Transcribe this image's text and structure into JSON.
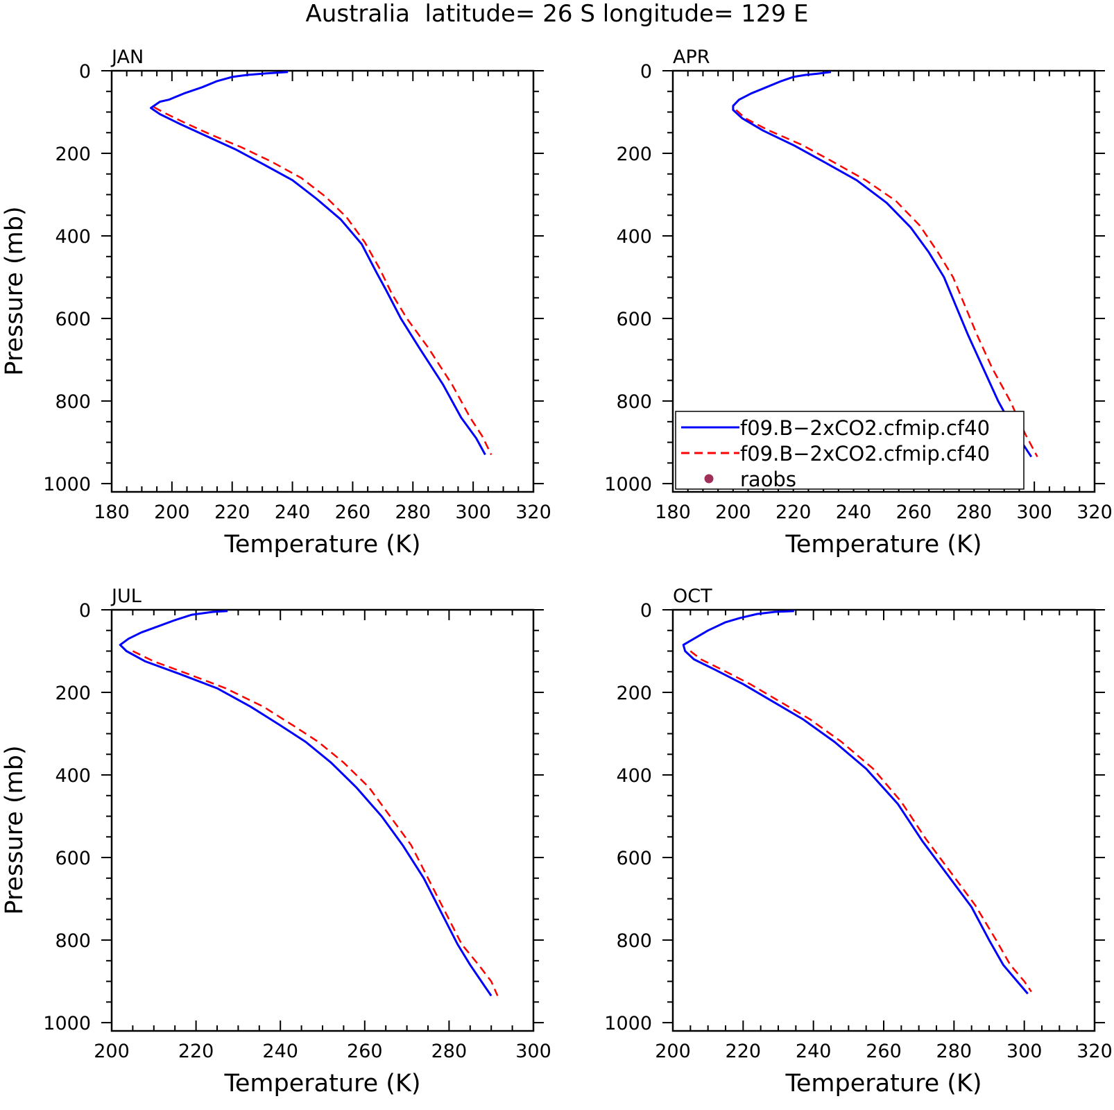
{
  "figure": {
    "title": "Australia  latitude= 26 S longitude= 129 E"
  },
  "colors": {
    "series_1": "#0000ff",
    "series_2": "#ff0000",
    "raobs": "#a0305a"
  },
  "legend": {
    "panel": 1,
    "entries": [
      {
        "label": "f09.B−2xCO2.cfmip.cf40",
        "style": "solid",
        "color": "#0000ff"
      },
      {
        "label": "f09.B−2xCO2.cfmip.cf40",
        "style": "dashed",
        "color": "#ff0000"
      },
      {
        "label": "raobs",
        "style": "dot",
        "color": "#a0305a"
      }
    ]
  },
  "chart_data": [
    {
      "type": "line",
      "title": "JAN",
      "xlabel": "Temperature (K)",
      "ylabel": "Pressure (mb)",
      "xlim": [
        180,
        320
      ],
      "ylim": [
        1020,
        0
      ],
      "xticks": [
        180,
        200,
        220,
        240,
        260,
        280,
        300,
        320
      ],
      "yticks": [
        0,
        200,
        400,
        600,
        800,
        1000
      ],
      "series": [
        {
          "values": [
            [
              238.5,
              3
            ],
            [
              230,
              7
            ],
            [
              225,
              10
            ],
            [
              220,
              15
            ],
            [
              215,
              25
            ],
            [
              210,
              40
            ],
            [
              204,
              55
            ],
            [
              199,
              70
            ],
            [
              196,
              75
            ],
            [
              193,
              90
            ],
            [
              196,
              105
            ],
            [
              203,
              130
            ],
            [
              212,
              160
            ],
            [
              221,
              190
            ],
            [
              230,
              225
            ],
            [
              240,
              265
            ],
            [
              248,
              310
            ],
            [
              256,
              360
            ],
            [
              263,
              420
            ],
            [
              268,
              490
            ],
            [
              271,
              530
            ],
            [
              276,
              600
            ],
            [
              282,
              670
            ],
            [
              290,
              760
            ],
            [
              296,
              840
            ],
            [
              301,
              890
            ],
            [
              304,
              930
            ]
          ]
        },
        {
          "values": [
            [
              194,
              88
            ],
            [
              197,
              100
            ],
            [
              204,
              125
            ],
            [
              213,
              155
            ],
            [
              223,
              185
            ],
            [
              233,
              220
            ],
            [
              243,
              260
            ],
            [
              251,
              305
            ],
            [
              258,
              355
            ],
            [
              264,
              415
            ],
            [
              269,
              480
            ],
            [
              273,
              540
            ],
            [
              278,
              600
            ],
            [
              285,
              670
            ],
            [
              293,
              760
            ],
            [
              299,
              840
            ],
            [
              303,
              885
            ],
            [
              306,
              930
            ]
          ]
        }
      ]
    },
    {
      "type": "line",
      "title": "APR",
      "xlabel": "Temperature (K)",
      "ylabel": "",
      "xlim": [
        180,
        320
      ],
      "ylim": [
        1020,
        0
      ],
      "xticks": [
        180,
        200,
        220,
        240,
        260,
        280,
        300,
        320
      ],
      "yticks": [
        0,
        200,
        400,
        600,
        800,
        1000
      ],
      "series": [
        {
          "values": [
            [
              232.5,
              3
            ],
            [
              228,
              7
            ],
            [
              224,
              10
            ],
            [
              220,
              15
            ],
            [
              216,
              25
            ],
            [
              211,
              40
            ],
            [
              206,
              55
            ],
            [
              202,
              70
            ],
            [
              200,
              85
            ],
            [
              200,
              95
            ],
            [
              203,
              115
            ],
            [
              210,
              145
            ],
            [
              220,
              180
            ],
            [
              230,
              220
            ],
            [
              241,
              265
            ],
            [
              251,
              320
            ],
            [
              259,
              380
            ],
            [
              265,
              440
            ],
            [
              270,
              500
            ],
            [
              274,
              570
            ],
            [
              278,
              640
            ],
            [
              283,
              720
            ],
            [
              288,
              800
            ],
            [
              294,
              880
            ],
            [
              299,
              935
            ]
          ]
        },
        {
          "values": [
            [
              201,
              95
            ],
            [
              204,
              115
            ],
            [
              212,
              145
            ],
            [
              223,
              180
            ],
            [
              233,
              220
            ],
            [
              244,
              265
            ],
            [
              254,
              315
            ],
            [
              262,
              375
            ],
            [
              268,
              440
            ],
            [
              273,
              500
            ],
            [
              277,
              570
            ],
            [
              281,
              640
            ],
            [
              286,
              720
            ],
            [
              292,
              800
            ],
            [
              297,
              880
            ],
            [
              301,
              935
            ]
          ]
        }
      ]
    },
    {
      "type": "line",
      "title": "JUL",
      "xlabel": "Temperature (K)",
      "ylabel": "Pressure (mb)",
      "xlim": [
        200,
        300
      ],
      "ylim": [
        1020,
        0
      ],
      "xticks": [
        200,
        220,
        240,
        260,
        280,
        300
      ],
      "yticks": [
        0,
        200,
        400,
        600,
        800,
        1000
      ],
      "series": [
        {
          "values": [
            [
              227.5,
              3
            ],
            [
              224,
              5
            ],
            [
              219,
              12
            ],
            [
              215,
              25
            ],
            [
              211,
              40
            ],
            [
              207,
              55
            ],
            [
              204,
              70
            ],
            [
              202,
              85
            ],
            [
              203.5,
              100
            ],
            [
              208,
              125
            ],
            [
              216,
              155
            ],
            [
              225,
              190
            ],
            [
              233,
              235
            ],
            [
              240,
              280
            ],
            [
              246,
              320
            ],
            [
              252,
              370
            ],
            [
              258,
              430
            ],
            [
              264,
              500
            ],
            [
              269,
              570
            ],
            [
              274,
              650
            ],
            [
              278,
              730
            ],
            [
              282,
              810
            ],
            [
              285,
              860
            ],
            [
              289,
              920
            ],
            [
              290,
              935
            ]
          ]
        },
        {
          "values": [
            [
              205,
              100
            ],
            [
              210,
              125
            ],
            [
              218,
              155
            ],
            [
              227,
              190
            ],
            [
              236,
              235
            ],
            [
              243,
              280
            ],
            [
              249,
              320
            ],
            [
              255,
              370
            ],
            [
              261,
              430
            ],
            [
              266,
              500
            ],
            [
              271,
              570
            ],
            [
              275,
              650
            ],
            [
              279,
              730
            ],
            [
              283,
              810
            ],
            [
              287,
              860
            ],
            [
              290,
              900
            ],
            [
              291.5,
              935
            ]
          ]
        }
      ]
    },
    {
      "type": "line",
      "title": "OCT",
      "xlabel": "Temperature (K)",
      "ylabel": "",
      "xlim": [
        200,
        320
      ],
      "ylim": [
        1020,
        0
      ],
      "xticks": [
        200,
        220,
        240,
        260,
        280,
        300,
        320
      ],
      "yticks": [
        0,
        200,
        400,
        600,
        800,
        1000
      ],
      "series": [
        {
          "values": [
            [
              234.5,
              3
            ],
            [
              229,
              5
            ],
            [
              224,
              10
            ],
            [
              219,
              20
            ],
            [
              215,
              30
            ],
            [
              210,
              50
            ],
            [
              206,
              70
            ],
            [
              203,
              85
            ],
            [
              203.5,
              100
            ],
            [
              206,
              120
            ],
            [
              212,
              145
            ],
            [
              220,
              180
            ],
            [
              228,
              220
            ],
            [
              237,
              265
            ],
            [
              246,
              320
            ],
            [
              255,
              385
            ],
            [
              264,
              470
            ],
            [
              271,
              560
            ],
            [
              278,
              640
            ],
            [
              285,
              720
            ],
            [
              290,
              800
            ],
            [
              294,
              860
            ],
            [
              298,
              900
            ],
            [
              301,
              930
            ]
          ]
        },
        {
          "values": [
            [
              205,
              100
            ],
            [
              208,
              120
            ],
            [
              214,
              145
            ],
            [
              222,
              180
            ],
            [
              230,
              220
            ],
            [
              239,
              265
            ],
            [
              248,
              320
            ],
            [
              257,
              385
            ],
            [
              265,
              465
            ],
            [
              272,
              555
            ],
            [
              279,
              635
            ],
            [
              286,
              715
            ],
            [
              292,
              800
            ],
            [
              296,
              860
            ],
            [
              300,
              900
            ],
            [
              302,
              925
            ]
          ]
        }
      ]
    }
  ]
}
